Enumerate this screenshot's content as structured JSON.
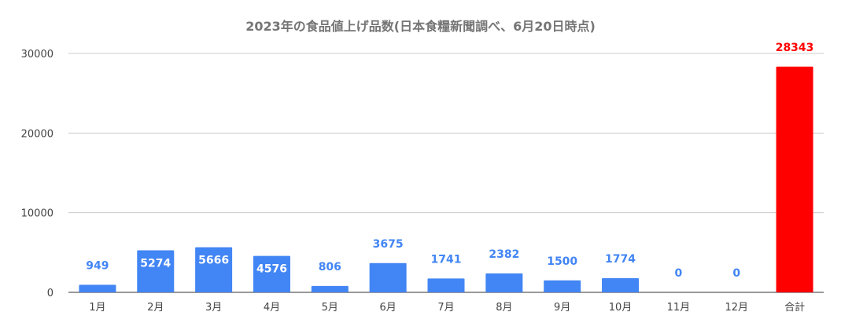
{
  "chart_data": {
    "type": "bar",
    "title": "2023年の食品値上げ品数(日本食糧新聞調べ、6月20日時点)",
    "xlabel": "",
    "ylabel": "",
    "categories": [
      "1月",
      "2月",
      "3月",
      "4月",
      "5月",
      "6月",
      "7月",
      "8月",
      "9月",
      "10月",
      "11月",
      "12月",
      "合計"
    ],
    "values": [
      949,
      5274,
      5666,
      4576,
      806,
      3675,
      1741,
      2382,
      1500,
      1774,
      0,
      0,
      28343
    ],
    "y_ticks": [
      "0",
      "10000",
      "20000",
      "30000"
    ],
    "ylim": [
      0,
      30000
    ],
    "grid": true,
    "legend": "none",
    "colors": {
      "bar": "#4285f4",
      "total_bar": "#ff0000",
      "label_outside": "#4285f4",
      "label_inside": "#ffffff",
      "total_label": "#ff0000",
      "grid": "#cccccc",
      "axis_text": "#444444",
      "title": "#757575"
    }
  }
}
